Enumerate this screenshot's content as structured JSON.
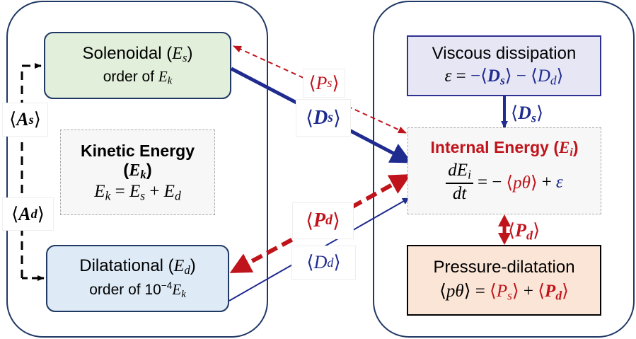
{
  "colors": {
    "red": "#c0141c",
    "blue": "#1f2b8f",
    "panel_stroke": "#1f3864",
    "solenoidal_fill": "#e2efda",
    "dilatational_fill": "#deebf7",
    "viscous_fill": "#e6e6f5",
    "pressure_fill": "#fbe5d6"
  },
  "solenoidal": {
    "title": "Solenoidal",
    "symbol": "E",
    "sub": "s",
    "line2": "order of",
    "line2_symbol": "E",
    "line2_sub": "k"
  },
  "kinetic": {
    "title": "Kinetic Energy",
    "symbol": "E",
    "sub": "k",
    "eq_lhs": "E",
    "eq_lhs_sub": "k",
    "eq_mid": "E",
    "eq_mid_sub": "s",
    "eq_rhs": "E",
    "eq_rhs_sub": "d"
  },
  "dilatational": {
    "title": "Dilatational",
    "symbol": "E",
    "sub": "d",
    "line2": "order of 10",
    "exp": "−4",
    "line2_symbol": "E",
    "line2_sub": "k"
  },
  "labels": {
    "As": "A",
    "As_sub": "s",
    "Ad": "A",
    "Ad_sub": "d",
    "Ps": "P",
    "Ps_sub": "s",
    "Ds": "D",
    "Ds_sub": "s",
    "Pd": "P",
    "Pd_sub": "d",
    "Dd": "D",
    "Dd_sub": "d"
  },
  "viscous": {
    "title": "Viscous dissipation",
    "eps": "ε"
  },
  "internal": {
    "title": "Internal Energy",
    "symbol": "E",
    "sub": "i",
    "num": "dE",
    "num_sub": "i",
    "den": "dt",
    "ptheta": "pθ",
    "eps": "ε"
  },
  "pressure": {
    "title": "Pressure-dilatation",
    "ptheta": "pθ"
  }
}
